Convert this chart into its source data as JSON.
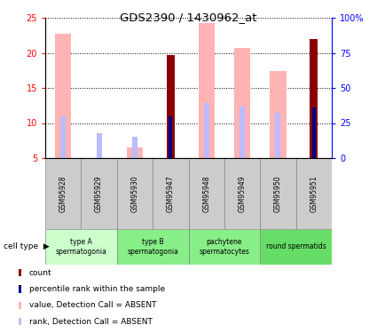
{
  "title": "GDS2390 / 1430962_at",
  "samples": [
    "GSM95928",
    "GSM95929",
    "GSM95930",
    "GSM95947",
    "GSM95948",
    "GSM95949",
    "GSM95950",
    "GSM95951"
  ],
  "value_absent": [
    22.7,
    null,
    6.5,
    null,
    24.2,
    20.7,
    17.4,
    null
  ],
  "rank_absent": [
    10.9,
    8.5,
    8.1,
    null,
    12.8,
    12.3,
    11.5,
    null
  ],
  "count": [
    null,
    null,
    null,
    19.7,
    null,
    null,
    null,
    21.9
  ],
  "percentile_rank": [
    null,
    null,
    null,
    10.9,
    null,
    null,
    null,
    12.2
  ],
  "ylim_left": [
    5,
    25
  ],
  "ylim_right": [
    0,
    100
  ],
  "yticks_left": [
    5,
    10,
    15,
    20,
    25
  ],
  "yticks_right": [
    0,
    25,
    50,
    75,
    100
  ],
  "ytick_labels_right": [
    "0",
    "25",
    "50",
    "75",
    "100%"
  ],
  "color_count": "#8b0000",
  "color_percentile": "#00008b",
  "color_value_absent": "#ffb3b3",
  "color_rank_absent": "#bbbbff",
  "background_color": "#ffffff",
  "group_colors": [
    "#ccffcc",
    "#88ee88",
    "#88ee88",
    "#66dd66"
  ],
  "groups": [
    {
      "start": 0,
      "end": 1,
      "label": "type A\nspermatogonia",
      "color": "#ccffcc"
    },
    {
      "start": 2,
      "end": 3,
      "label": "type B\nspermatogonia",
      "color": "#88ee88"
    },
    {
      "start": 4,
      "end": 5,
      "label": "pachytene\nspermatocytes",
      "color": "#88ee88"
    },
    {
      "start": 6,
      "end": 7,
      "label": "round spermatids",
      "color": "#66dd66"
    }
  ]
}
